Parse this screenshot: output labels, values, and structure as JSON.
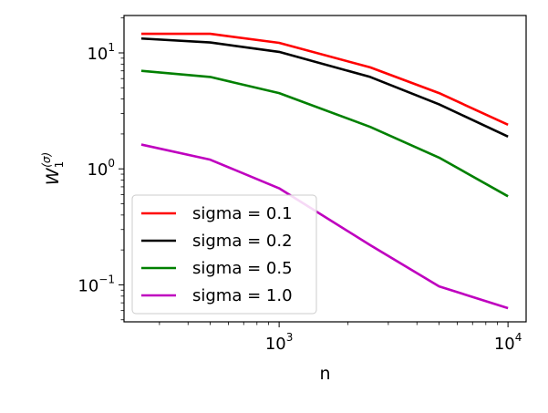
{
  "chart_data": {
    "type": "line",
    "x_scale": "log",
    "y_scale": "log",
    "xlabel": "n",
    "ylabel": "W_1^(σ)",
    "ylabel_parts": {
      "base": "W",
      "sub": "1",
      "sup": "(σ)"
    },
    "xlim": [
      210,
      12000
    ],
    "ylim": [
      0.048,
      21
    ],
    "x_ticks": [
      {
        "value": 1000,
        "base": "10",
        "exp": "3"
      },
      {
        "value": 10000,
        "base": "10",
        "exp": "4"
      }
    ],
    "y_ticks": [
      {
        "value": 0.1,
        "base": "10",
        "exp": "−1"
      },
      {
        "value": 1,
        "base": "10",
        "exp": "0"
      },
      {
        "value": 10,
        "base": "10",
        "exp": "1"
      }
    ],
    "x": [
      250,
      500,
      1000,
      2500,
      5000,
      10000
    ],
    "series": [
      {
        "name": "sigma = 0.1",
        "color": "#ff0000",
        "values": [
          14.6,
          14.6,
          12.2,
          7.5,
          4.5,
          2.4
        ]
      },
      {
        "name": "sigma = 0.2",
        "color": "#000000",
        "values": [
          13.3,
          12.3,
          10.2,
          6.2,
          3.6,
          1.9
        ]
      },
      {
        "name": "sigma = 0.5",
        "color": "#008000",
        "values": [
          7.0,
          6.2,
          4.5,
          2.3,
          1.25,
          0.58
        ]
      },
      {
        "name": "sigma = 1.0",
        "color": "#bf00bf",
        "values": [
          1.62,
          1.2,
          0.68,
          0.22,
          0.097,
          0.063
        ]
      }
    ],
    "legend_position": "lower-left",
    "grid": false
  }
}
